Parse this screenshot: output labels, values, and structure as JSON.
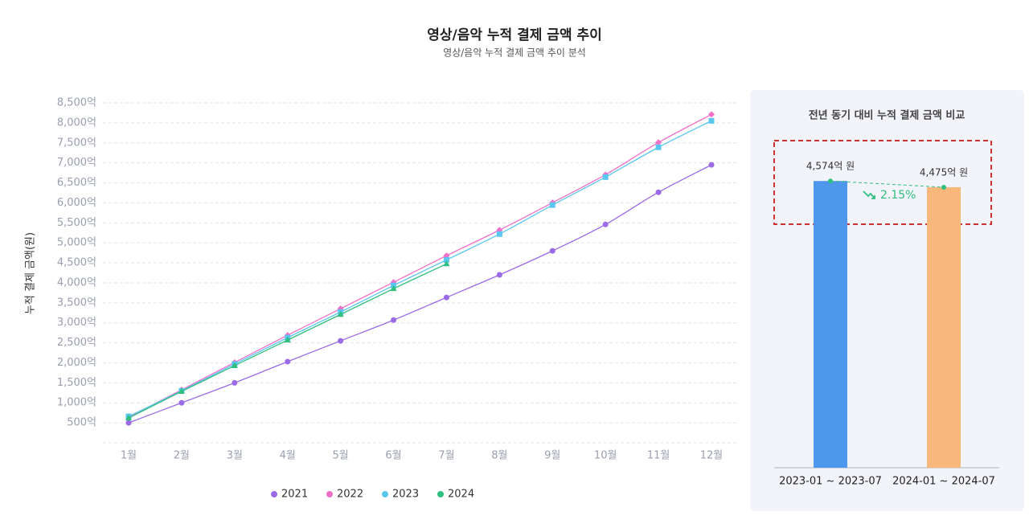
{
  "chart_data": [
    {
      "type": "line",
      "title": "영상/음악 누적 결제 금액 추이",
      "subtitle": "영상/음악 누적 결제 금액 추이 분석",
      "y_label": "누적 결제 금액(원)",
      "categories": [
        "1월",
        "2월",
        "3월",
        "4월",
        "5월",
        "6월",
        "7월",
        "8월",
        "9월",
        "10월",
        "11월",
        "12월"
      ],
      "series": [
        {
          "name": "2021",
          "color": "#9b6ae6",
          "marker": "circle",
          "values": [
            500,
            1000,
            1500,
            2030,
            2550,
            3070,
            3635,
            4200,
            4800,
            5460,
            6265,
            6950
          ]
        },
        {
          "name": "2022",
          "color": "#f06fc8",
          "marker": "diamond",
          "values": [
            640,
            1325,
            2010,
            2690,
            3355,
            4015,
            4680,
            5320,
            6005,
            6705,
            7510,
            8210
          ]
        },
        {
          "name": "2023",
          "color": "#5bc6f0",
          "marker": "square",
          "values": [
            660,
            1300,
            1970,
            2630,
            3270,
            3935,
            4574,
            5220,
            5945,
            6645,
            7390,
            8050
          ]
        },
        {
          "name": "2024",
          "color": "#2fbf7f",
          "marker": "triangle",
          "values": [
            620,
            1285,
            1930,
            2570,
            3210,
            3855,
            4475,
            null,
            null,
            null,
            null,
            null
          ]
        }
      ],
      "ylim": [
        0,
        8500
      ],
      "yticks": [
        {
          "value": 500,
          "label": "500억"
        },
        {
          "value": 1000,
          "label": "1,000억"
        },
        {
          "value": 1500,
          "label": "1,500억"
        },
        {
          "value": 2000,
          "label": "2,000억"
        },
        {
          "value": 2500,
          "label": "2,500억"
        },
        {
          "value": 3000,
          "label": "3,000억"
        },
        {
          "value": 3500,
          "label": "3,500억"
        },
        {
          "value": 4000,
          "label": "4,000억"
        },
        {
          "value": 4500,
          "label": "4,500억"
        },
        {
          "value": 5000,
          "label": "5,000억"
        },
        {
          "value": 5500,
          "label": "5,500억"
        },
        {
          "value": 6000,
          "label": "6,000억"
        },
        {
          "value": 6500,
          "label": "6,500억"
        },
        {
          "value": 7000,
          "label": "7,000억"
        },
        {
          "value": 7500,
          "label": "7,500억"
        },
        {
          "value": 8000,
          "label": "8,000억"
        },
        {
          "value": 8500,
          "label": "8,500억"
        }
      ],
      "grid": true,
      "legend": "bottom"
    },
    {
      "type": "bar",
      "title": "전년 동기 대비 누적 결제 금액 비교",
      "categories": [
        "2023-01 ~ 2023-07",
        "2024-01 ~ 2024-07"
      ],
      "values": [
        4574,
        4475
      ],
      "value_labels": [
        "4,574억 원",
        "4,475억 원"
      ],
      "colors": [
        "#4f97ec",
        "#f8b77b"
      ],
      "change_label": "2.15%",
      "ylim": [
        0,
        5000
      ]
    }
  ]
}
